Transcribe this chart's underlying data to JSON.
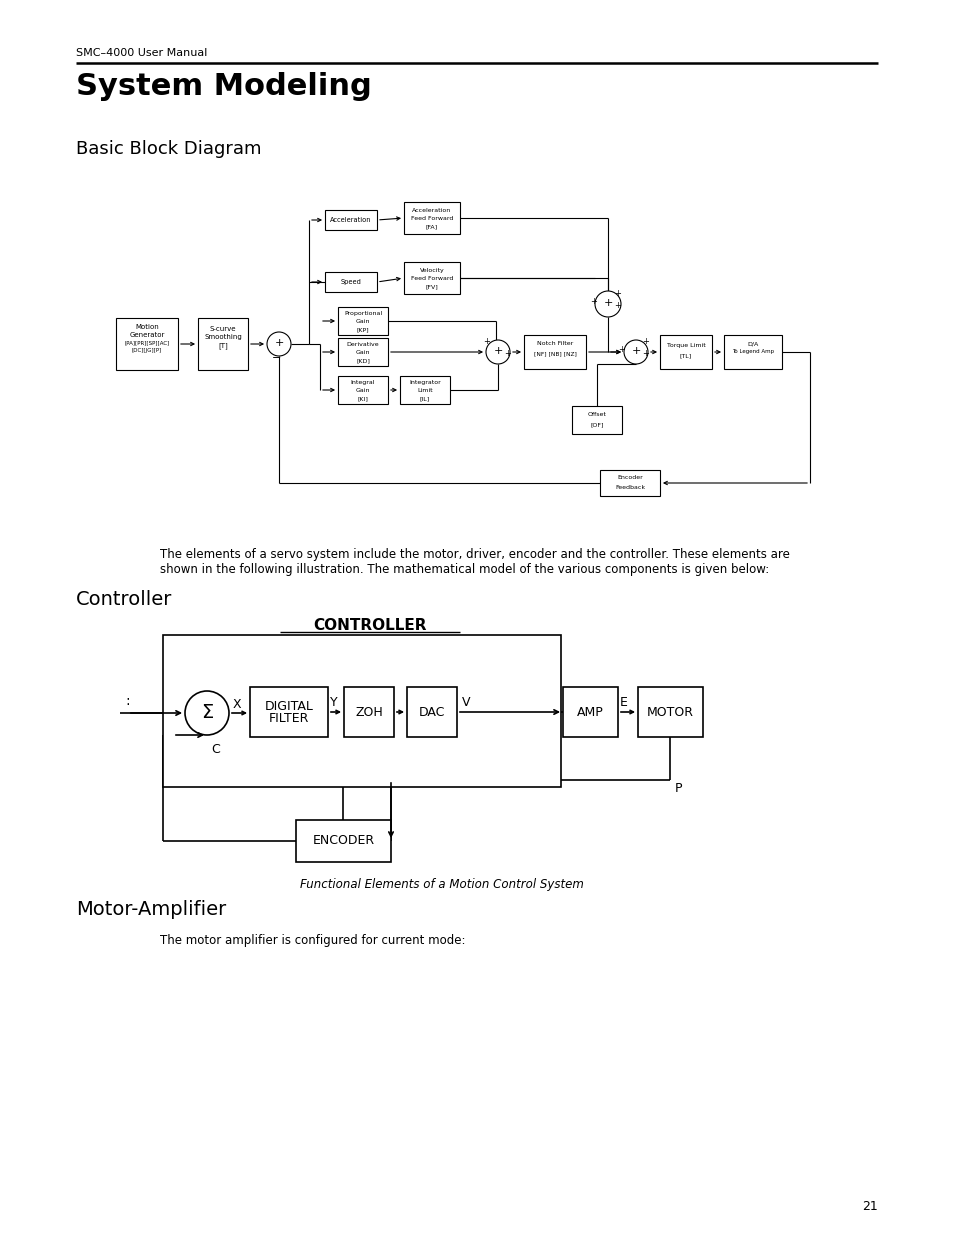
{
  "page_header": "SMC–4000 User Manual",
  "title": "System Modeling",
  "section1": "Basic Block Diagram",
  "body_text_1": "The elements of a servo system include the motor, driver, encoder and the controller. These elements are",
  "body_text_2": "shown in the following illustration. The mathematical model of the various components is given below:",
  "section2": "Controller",
  "section3": "Motor-Amplifier",
  "motor_amp_text": "The motor amplifier is configured for current mode:",
  "controller_label": "CONTROLLER",
  "caption": "Functional Elements of a Motion Control System",
  "page_number": "21",
  "bg_color": "#ffffff",
  "text_color": "#000000"
}
